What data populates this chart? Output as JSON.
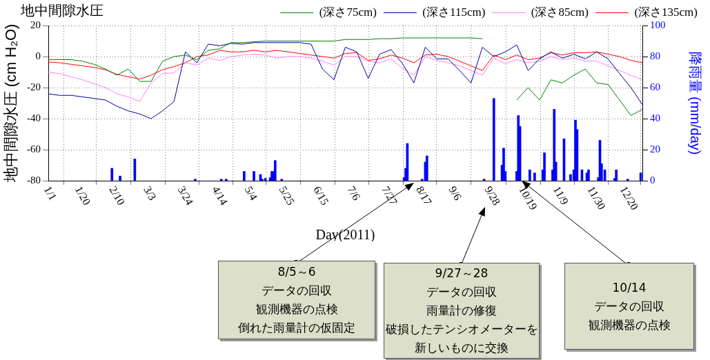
{
  "chart_data": {
    "type": "line",
    "title": "地中間隙水圧",
    "xlabel": "Day(2011)",
    "ylabel": "地中間隙水圧 (cm H₂O)",
    "y2label": "降雨量 (mm/day)",
    "x": [
      "2011-01-01",
      "2011-01-08",
      "2011-01-15",
      "2011-01-22",
      "2011-01-29",
      "2011-02-05",
      "2011-02-12",
      "2011-02-19",
      "2011-02-26",
      "2011-03-05",
      "2011-03-12",
      "2011-03-19",
      "2011-03-26",
      "2011-04-02",
      "2011-04-09",
      "2011-04-16",
      "2011-04-23",
      "2011-04-30",
      "2011-05-07",
      "2011-05-14",
      "2011-05-21",
      "2011-05-28",
      "2011-06-04",
      "2011-06-11",
      "2011-06-18",
      "2011-06-25",
      "2011-07-02",
      "2011-07-09",
      "2011-07-16",
      "2011-07-23",
      "2011-07-30",
      "2011-08-06",
      "2011-08-13",
      "2011-08-20",
      "2011-08-27",
      "2011-09-03",
      "2011-09-10",
      "2011-09-17",
      "2011-09-24",
      "2011-10-01",
      "2011-10-08",
      "2011-10-15",
      "2011-10-22",
      "2011-10-29",
      "2011-11-05",
      "2011-11-12",
      "2011-11-19",
      "2011-11-26",
      "2011-12-03",
      "2011-12-10",
      "2011-12-17",
      "2011-12-24",
      "2011-12-31"
    ],
    "series": [
      {
        "name": "(深さ75cm)",
        "color": "#008000",
        "values": [
          -2,
          -2,
          -2,
          -3,
          -5,
          -8,
          -12,
          -8,
          -16,
          -16,
          -3,
          0,
          1,
          -2,
          4,
          5,
          9,
          9,
          9.5,
          10,
          10,
          10,
          10,
          10,
          10,
          10,
          11,
          11,
          11,
          11.5,
          11.5,
          12,
          12,
          12,
          12,
          12,
          12,
          12,
          11.5,
          null,
          null,
          -28,
          -20,
          -28,
          -15,
          -17,
          -12,
          -8,
          -17,
          -18,
          -28,
          -38,
          -34
        ]
      },
      {
        "name": "(深さ115cm)",
        "color": "#000099",
        "values": [
          -24,
          -25,
          -25,
          -26,
          -27,
          -28,
          -32,
          -35,
          -37,
          -40,
          -35,
          -29,
          3,
          -4,
          8,
          7,
          8.5,
          8,
          9,
          9,
          9,
          9,
          9,
          8,
          -8,
          -15,
          6,
          3,
          -14,
          1.5,
          4.5,
          -4.5,
          -17,
          6,
          -1.5,
          -1.5,
          -9,
          -17,
          6,
          0,
          3,
          7.5,
          -9,
          -1.5,
          3,
          -1,
          1.5,
          -1.5,
          3,
          -1.5,
          -11,
          -20,
          -31
        ]
      },
      {
        "name": "(深さ85cm)",
        "color": "#ff80ff",
        "values": [
          -10,
          -11,
          -13,
          -15,
          -17.5,
          -20,
          -24,
          -26,
          -29,
          -17,
          -11,
          -10.5,
          -4,
          -5.5,
          -1,
          -2.5,
          0,
          1,
          1.5,
          1,
          -1,
          0,
          0,
          -1,
          -3,
          -5.5,
          0,
          0,
          -3,
          -4,
          -1.5,
          -7.5,
          -12,
          0,
          -2.5,
          -4,
          -6,
          -9,
          -12,
          -1,
          -4.5,
          -2,
          -4,
          -3,
          0,
          -2,
          -1,
          -3,
          -3,
          -6,
          -9,
          -12,
          -15
        ]
      },
      {
        "name": "(深さ135cm)",
        "color": "#ff0000",
        "values": [
          -3.5,
          -4,
          -5,
          -6,
          -7,
          -8.5,
          -11.5,
          -13,
          -14.5,
          -12,
          -8.5,
          -6.5,
          -4,
          0,
          1,
          4,
          3,
          3,
          4,
          3,
          4,
          3,
          2,
          1,
          0,
          -1,
          2,
          2.5,
          -2.5,
          -1.5,
          1,
          -1,
          -4,
          1,
          1.5,
          0,
          -3,
          -6,
          -9,
          1,
          -2,
          1,
          -2,
          -1,
          2.5,
          1,
          2.5,
          2.5,
          3,
          1.5,
          0,
          -2.5,
          -4
        ]
      },
      {
        "type": "bar",
        "axis": "y2",
        "color": "#0000ff",
        "x": [
          "2011-02-09",
          "2011-02-14",
          "2011-02-23",
          "2011-04-01",
          "2011-04-17",
          "2011-04-20",
          "2011-05-01",
          "2011-05-07",
          "2011-05-11",
          "2011-05-12",
          "2011-05-14",
          "2011-05-17",
          "2011-05-18",
          "2011-05-19",
          "2011-05-20",
          "2011-05-24",
          "2011-08-07",
          "2011-08-08",
          "2011-08-09",
          "2011-08-18",
          "2011-08-20",
          "2011-08-21",
          "2011-09-25",
          "2011-10-01",
          "2011-10-06",
          "2011-10-07",
          "2011-10-08",
          "2011-10-15",
          "2011-10-16",
          "2011-10-17",
          "2011-10-23",
          "2011-10-26",
          "2011-10-31",
          "2011-11-01",
          "2011-11-06",
          "2011-11-07",
          "2011-11-08",
          "2011-11-13",
          "2011-11-17",
          "2011-11-19",
          "2011-11-20",
          "2011-11-21",
          "2011-11-24",
          "2011-11-27",
          "2011-11-28",
          "2011-12-04",
          "2011-12-05",
          "2011-12-06",
          "2011-12-08",
          "2011-12-14",
          "2011-12-15",
          "2011-12-22",
          "2011-12-30"
        ],
        "values": [
          8,
          3,
          14,
          1,
          1,
          1,
          6,
          6,
          4,
          1,
          1.5,
          2,
          6,
          6,
          13,
          1,
          2,
          8,
          24,
          1,
          12,
          16,
          1,
          53,
          10,
          21,
          6,
          6,
          42,
          35,
          7,
          5,
          7,
          18,
          7,
          46,
          12,
          27,
          4,
          7,
          39,
          33,
          7,
          5,
          7,
          2,
          26,
          11,
          7,
          1.5,
          7,
          1,
          5
        ]
      }
    ],
    "xlim": [
      "2011-01-01",
      "2011-12-31"
    ],
    "xticks": [
      {
        "value": "2011-01-01",
        "label": "1/1"
      },
      {
        "value": "2011-01-20",
        "label": "1/20"
      },
      {
        "value": "2011-02-10",
        "label": "2/10"
      },
      {
        "value": "2011-03-03",
        "label": "3/3"
      },
      {
        "value": "2011-03-24",
        "label": "3/24"
      },
      {
        "value": "2011-04-14",
        "label": "4/14"
      },
      {
        "value": "2011-05-04",
        "label": "5/4"
      },
      {
        "value": "2011-05-25",
        "label": "5/25"
      },
      {
        "value": "2011-06-15",
        "label": "6/15"
      },
      {
        "value": "2011-07-06",
        "label": "7/6"
      },
      {
        "value": "2011-07-27",
        "label": "7/27"
      },
      {
        "value": "2011-08-17",
        "label": "8/17"
      },
      {
        "value": "2011-09-06",
        "label": "9/6"
      },
      {
        "value": "2011-09-28",
        "label": "9/28"
      },
      {
        "value": "2011-10-19",
        "label": "10/19"
      },
      {
        "value": "2011-11-09",
        "label": "11/9"
      },
      {
        "value": "2011-11-30",
        "label": "11/30"
      },
      {
        "value": "2011-12-20",
        "label": "12/20"
      }
    ],
    "ylim": [
      -80,
      20
    ],
    "yticks": [
      -80,
      -60,
      -40,
      -20,
      0,
      20
    ],
    "y2lim": [
      0,
      100
    ],
    "y2ticks": [
      0,
      20,
      40,
      60,
      80,
      100
    ],
    "grid": true,
    "legend": "top",
    "marker": "none",
    "line_style": "solid",
    "annotations": [
      "8/5～6",
      "データの回収",
      "観測機器の点検",
      "倒れた雨量計の仮固定",
      "9/27～28",
      "データの回収",
      "雨量計の修復",
      "破損したテンシオメーターを",
      "新しいものに交換",
      "10/14",
      "データの回収",
      "観測機器の点検"
    ]
  }
}
